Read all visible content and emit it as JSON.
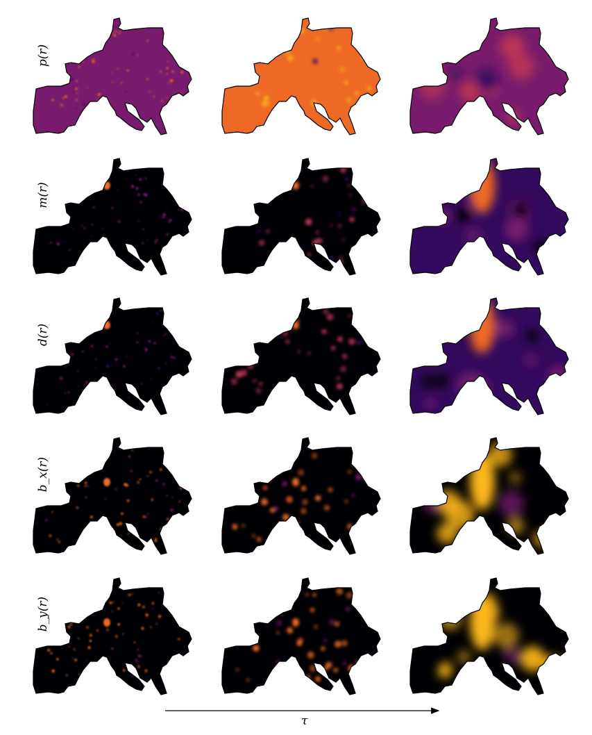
{
  "rows": [
    {
      "label": "p(r)",
      "palette": "p"
    },
    {
      "label": "m(r)",
      "palette": "m"
    },
    {
      "label": "d(r)",
      "palette": "d"
    },
    {
      "label": "b_x(r)",
      "palette": "bx"
    },
    {
      "label": "b_y(r)",
      "palette": "by"
    }
  ],
  "columns": 3,
  "colormap": "inferno",
  "colors": {
    "inferno_0": "#000004",
    "inferno_1": "#320a5e",
    "inferno_2": "#781b6c",
    "inferno_3": "#bb3755",
    "inferno_4": "#ed6925",
    "inferno_5": "#fbb61a",
    "inferno_6": "#fcffa4",
    "outline": "#000000"
  },
  "axis": {
    "label": "τ"
  }
}
